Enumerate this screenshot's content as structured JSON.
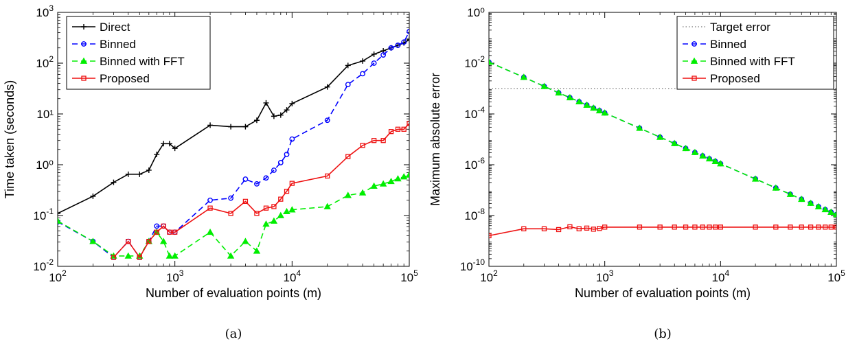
{
  "chart_data": [
    {
      "type": "line",
      "panel_label": "(a)",
      "xlabel": "Number of evaluation points (m)",
      "ylabel": "Time taken (seconds)",
      "xscale": "log",
      "yscale": "log",
      "xlim": [
        100,
        100000
      ],
      "ylim": [
        0.01,
        1000
      ],
      "xticks": [
        {
          "value": 100,
          "base": "10",
          "exp": "2"
        },
        {
          "value": 1000,
          "base": "10",
          "exp": "3"
        },
        {
          "value": 10000,
          "base": "10",
          "exp": "4"
        },
        {
          "value": 100000,
          "base": "10",
          "exp": "5"
        }
      ],
      "yticks": [
        {
          "value": 0.01,
          "base": "10",
          "exp": "-2"
        },
        {
          "value": 0.1,
          "base": "10",
          "exp": "-1"
        },
        {
          "value": 1,
          "label": "10⁰"
        },
        {
          "value": 10,
          "label": "10¹"
        },
        {
          "value": 100,
          "base": "10",
          "exp": "2"
        },
        {
          "value": 1000,
          "base": "10",
          "exp": "3"
        }
      ],
      "legend_position": "top-left",
      "series": [
        {
          "name": "Direct",
          "color": "#000000",
          "dash": "solid",
          "marker": "plus",
          "x": [
            100,
            200,
            300,
            400,
            500,
            600,
            700,
            800,
            900,
            1000,
            2000,
            3000,
            4000,
            5000,
            6000,
            7000,
            8000,
            9000,
            10000,
            20000,
            30000,
            40000,
            50000,
            60000,
            70000,
            80000,
            90000,
            100000
          ],
          "y": [
            0.11,
            0.24,
            0.45,
            0.65,
            0.65,
            0.78,
            1.6,
            2.6,
            2.6,
            2.1,
            6.0,
            5.6,
            5.6,
            7.5,
            16.5,
            9.0,
            9.5,
            12.0,
            16.0,
            34.0,
            90.0,
            110.0,
            150.0,
            175.0,
            200.0,
            225.0,
            250.0,
            290.0
          ]
        },
        {
          "name": "Binned",
          "color": "#0000ff",
          "dash": "dashed",
          "marker": "circle",
          "x": [
            100,
            200,
            300,
            400,
            500,
            600,
            700,
            800,
            900,
            1000,
            2000,
            3000,
            4000,
            5000,
            6000,
            7000,
            8000,
            9000,
            10000,
            20000,
            30000,
            40000,
            50000,
            60000,
            70000,
            80000,
            90000,
            100000
          ],
          "y": [
            0.075,
            0.031,
            0.015,
            0.031,
            0.015,
            0.031,
            0.062,
            0.062,
            0.047,
            0.047,
            0.2,
            0.22,
            0.52,
            0.42,
            0.55,
            0.78,
            1.1,
            1.6,
            3.2,
            7.5,
            38.0,
            62.0,
            100.0,
            145.0,
            200.0,
            225.0,
            260.0,
            420.0
          ]
        },
        {
          "name": "Binned with FFT",
          "color": "#00ee00",
          "dash": "dashed",
          "marker": "triangle",
          "x": [
            100,
            200,
            300,
            400,
            500,
            600,
            700,
            800,
            900,
            1000,
            2000,
            3000,
            4000,
            5000,
            6000,
            7000,
            8000,
            9000,
            10000,
            20000,
            30000,
            40000,
            50000,
            60000,
            70000,
            80000,
            90000,
            100000
          ],
          "y": [
            0.078,
            0.031,
            0.016,
            0.016,
            0.016,
            0.031,
            0.047,
            0.031,
            0.016,
            0.016,
            0.047,
            0.016,
            0.031,
            0.02,
            0.068,
            0.078,
            0.1,
            0.12,
            0.13,
            0.15,
            0.25,
            0.28,
            0.38,
            0.42,
            0.47,
            0.53,
            0.58,
            0.63
          ]
        },
        {
          "name": "Proposed",
          "color": "#ee1111",
          "dash": "solid",
          "marker": "square",
          "x": [
            300,
            400,
            500,
            600,
            700,
            800,
            900,
            1000,
            2000,
            3000,
            4000,
            5000,
            6000,
            7000,
            8000,
            9000,
            10000,
            20000,
            30000,
            40000,
            50000,
            60000,
            70000,
            80000,
            90000,
            100000
          ],
          "y": [
            0.015,
            0.031,
            0.015,
            0.031,
            0.047,
            0.062,
            0.047,
            0.047,
            0.14,
            0.11,
            0.19,
            0.11,
            0.14,
            0.15,
            0.21,
            0.3,
            0.43,
            0.6,
            1.45,
            2.4,
            3.0,
            3.0,
            4.5,
            5.0,
            5.0,
            6.5
          ]
        }
      ]
    },
    {
      "type": "line",
      "panel_label": "(b)",
      "xlabel": "Number of evaluation points (m)",
      "ylabel": "Maximum absolute error",
      "xscale": "log",
      "yscale": "log",
      "xlim": [
        100,
        100000
      ],
      "ylim": [
        1e-10,
        1
      ],
      "xticks": [
        {
          "value": 100,
          "base": "10",
          "exp": "2"
        },
        {
          "value": 1000,
          "base": "10",
          "exp": "3"
        },
        {
          "value": 10000,
          "base": "10",
          "exp": "4"
        },
        {
          "value": 100000,
          "base": "10",
          "exp": "5"
        }
      ],
      "yticks": [
        {
          "value": 1e-10,
          "base": "10",
          "exp": "-10"
        },
        {
          "value": 1e-08,
          "base": "10",
          "exp": "-8"
        },
        {
          "value": 1e-06,
          "base": "10",
          "exp": "-6"
        },
        {
          "value": 0.0001,
          "base": "10",
          "exp": "-4"
        },
        {
          "value": 0.01,
          "base": "10",
          "exp": "-2"
        },
        {
          "value": 1,
          "label": "10⁰"
        }
      ],
      "legend_position": "top-right",
      "series": [
        {
          "name": "Target error",
          "color": "#555555",
          "dash": "dotted",
          "marker": "none",
          "x": [
            100,
            100000
          ],
          "y": [
            0.001,
            0.001
          ]
        },
        {
          "name": "Binned",
          "color": "#0000ff",
          "dash": "dashed",
          "marker": "circle",
          "x": [
            100,
            200,
            300,
            400,
            500,
            600,
            700,
            800,
            900,
            1000,
            2000,
            3000,
            4000,
            5000,
            6000,
            7000,
            8000,
            9000,
            10000,
            20000,
            30000,
            40000,
            50000,
            60000,
            70000,
            80000,
            90000,
            100000
          ],
          "y": [
            0.011,
            0.0028,
            0.00122,
            0.00068,
            0.00044,
            0.000304,
            0.000224,
            0.000171,
            0.000135,
            0.00011,
            2.76e-05,
            1.22e-05,
            6.9e-06,
            4.4e-06,
            3.06e-06,
            2.24e-06,
            1.72e-06,
            1.36e-06,
            1.1e-06,
            2.76e-07,
            1.22e-07,
            6.88e-08,
            4.4e-08,
            3.06e-08,
            2.24e-08,
            1.72e-08,
            1.36e-08,
            1.1e-08
          ]
        },
        {
          "name": "Binned with FFT",
          "color": "#00ee00",
          "dash": "dashed",
          "marker": "triangle",
          "x": [
            100,
            200,
            300,
            400,
            500,
            600,
            700,
            800,
            900,
            1000,
            2000,
            3000,
            4000,
            5000,
            6000,
            7000,
            8000,
            9000,
            10000,
            20000,
            30000,
            40000,
            50000,
            60000,
            70000,
            80000,
            90000,
            100000
          ],
          "y": [
            0.011,
            0.0028,
            0.00122,
            0.00068,
            0.00044,
            0.000304,
            0.000224,
            0.000171,
            0.000135,
            0.00011,
            2.76e-05,
            1.22e-05,
            6.9e-06,
            4.4e-06,
            3.06e-06,
            2.24e-06,
            1.72e-06,
            1.36e-06,
            1.1e-06,
            2.76e-07,
            1.22e-07,
            6.88e-08,
            4.4e-08,
            3.06e-08,
            2.24e-08,
            1.72e-08,
            1.36e-08,
            1.1e-08
          ]
        },
        {
          "name": "Proposed",
          "color": "#ee1111",
          "dash": "solid",
          "marker": "square",
          "x": [
            100,
            200,
            300,
            400,
            500,
            600,
            700,
            800,
            900,
            1000,
            2000,
            3000,
            4000,
            5000,
            6000,
            7000,
            8000,
            9000,
            10000,
            20000,
            30000,
            40000,
            50000,
            60000,
            70000,
            80000,
            90000,
            100000
          ],
          "y": [
            1.6e-09,
            3e-09,
            3e-09,
            2.8e-09,
            3.6e-09,
            3e-09,
            3.2e-09,
            2.9e-09,
            3.1e-09,
            3.5e-09,
            3.5e-09,
            3.5e-09,
            3.5e-09,
            3.5e-09,
            3.5e-09,
            3.5e-09,
            3.5e-09,
            3.5e-09,
            3.5e-09,
            3.5e-09,
            3.5e-09,
            3.5e-09,
            3.5e-09,
            3.5e-09,
            3.5e-09,
            3.5e-09,
            3.5e-09,
            3.5e-09
          ]
        }
      ]
    }
  ]
}
